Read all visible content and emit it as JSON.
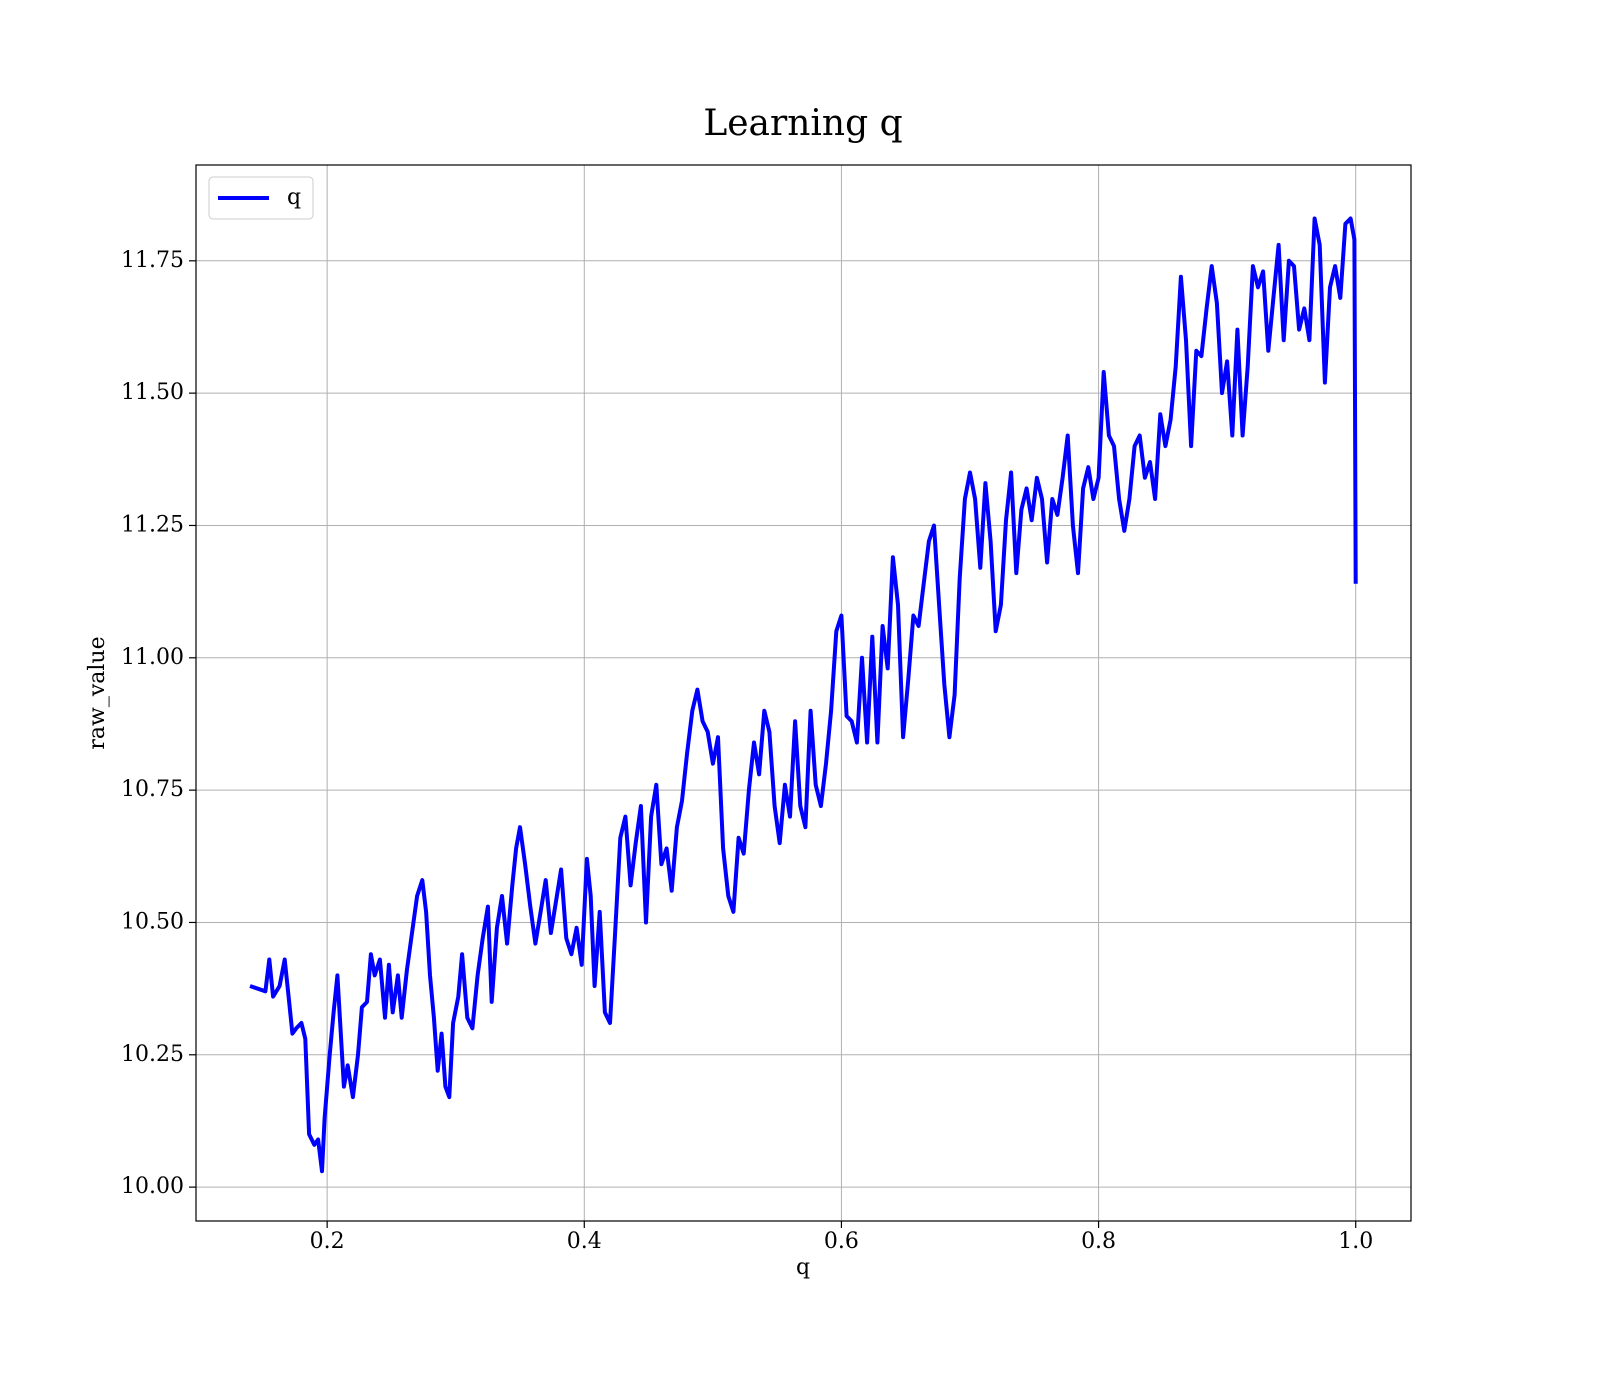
{
  "chart_data": {
    "type": "line",
    "title": "Learning q",
    "xlabel": "q",
    "ylabel": "raw_value",
    "x": [
      0.14,
      0.152,
      0.155,
      0.158,
      0.163,
      0.167,
      0.17,
      0.173,
      0.176,
      0.18,
      0.183,
      0.186,
      0.19,
      0.193,
      0.196,
      0.198,
      0.202,
      0.205,
      0.208,
      0.213,
      0.216,
      0.22,
      0.224,
      0.227,
      0.231,
      0.234,
      0.237,
      0.241,
      0.245,
      0.248,
      0.251,
      0.255,
      0.258,
      0.262,
      0.266,
      0.27,
      0.274,
      0.277,
      0.28,
      0.283,
      0.286,
      0.289,
      0.292,
      0.295,
      0.298,
      0.302,
      0.305,
      0.309,
      0.313,
      0.317,
      0.321,
      0.325,
      0.328,
      0.332,
      0.336,
      0.34,
      0.344,
      0.347,
      0.35,
      0.354,
      0.358,
      0.362,
      0.366,
      0.37,
      0.374,
      0.378,
      0.382,
      0.386,
      0.39,
      0.394,
      0.398,
      0.402,
      0.405,
      0.408,
      0.412,
      0.416,
      0.42,
      0.424,
      0.428,
      0.432,
      0.436,
      0.44,
      0.444,
      0.448,
      0.452,
      0.456,
      0.46,
      0.464,
      0.468,
      0.472,
      0.476,
      0.48,
      0.484,
      0.488,
      0.492,
      0.496,
      0.5,
      0.504,
      0.508,
      0.512,
      0.516,
      0.52,
      0.524,
      0.528,
      0.532,
      0.536,
      0.54,
      0.544,
      0.548,
      0.552,
      0.556,
      0.56,
      0.564,
      0.568,
      0.572,
      0.576,
      0.58,
      0.584,
      0.588,
      0.592,
      0.596,
      0.6,
      0.604,
      0.608,
      0.612,
      0.616,
      0.62,
      0.624,
      0.628,
      0.632,
      0.636,
      0.64,
      0.644,
      0.648,
      0.652,
      0.656,
      0.66,
      0.664,
      0.668,
      0.672,
      0.676,
      0.68,
      0.684,
      0.688,
      0.692,
      0.696,
      0.7,
      0.704,
      0.708,
      0.712,
      0.716,
      0.72,
      0.724,
      0.728,
      0.732,
      0.736,
      0.74,
      0.744,
      0.748,
      0.752,
      0.756,
      0.76,
      0.764,
      0.768,
      0.772,
      0.776,
      0.78,
      0.784,
      0.788,
      0.792,
      0.796,
      0.8,
      0.804,
      0.808,
      0.812,
      0.816,
      0.82,
      0.824,
      0.828,
      0.832,
      0.836,
      0.84,
      0.844,
      0.848,
      0.852,
      0.856,
      0.86,
      0.864,
      0.868,
      0.872,
      0.876,
      0.88,
      0.884,
      0.888,
      0.892,
      0.896,
      0.9,
      0.904,
      0.908,
      0.912,
      0.916,
      0.92,
      0.924,
      0.928,
      0.932,
      0.936,
      0.94,
      0.944,
      0.948,
      0.952,
      0.956,
      0.96,
      0.964,
      0.968,
      0.972,
      0.976,
      0.98,
      0.984,
      0.988,
      0.992,
      0.996,
      0.999,
      1.0
    ],
    "series": [
      {
        "name": "q",
        "color": "#0000ff",
        "values": [
          10.38,
          10.37,
          10.43,
          10.36,
          10.38,
          10.43,
          10.36,
          10.29,
          10.3,
          10.31,
          10.28,
          10.1,
          10.08,
          10.09,
          10.03,
          10.13,
          10.25,
          10.33,
          10.4,
          10.19,
          10.23,
          10.17,
          10.25,
          10.34,
          10.35,
          10.44,
          10.4,
          10.43,
          10.32,
          10.42,
          10.33,
          10.4,
          10.32,
          10.41,
          10.48,
          10.55,
          10.58,
          10.52,
          10.4,
          10.32,
          10.22,
          10.29,
          10.19,
          10.17,
          10.31,
          10.36,
          10.44,
          10.32,
          10.3,
          10.4,
          10.47,
          10.53,
          10.35,
          10.49,
          10.55,
          10.46,
          10.57,
          10.64,
          10.68,
          10.61,
          10.53,
          10.46,
          10.52,
          10.58,
          10.48,
          10.54,
          10.6,
          10.47,
          10.44,
          10.49,
          10.42,
          10.62,
          10.55,
          10.38,
          10.52,
          10.33,
          10.31,
          10.48,
          10.66,
          10.7,
          10.57,
          10.65,
          10.72,
          10.5,
          10.7,
          10.76,
          10.61,
          10.64,
          10.56,
          10.68,
          10.73,
          10.82,
          10.9,
          10.94,
          10.88,
          10.86,
          10.8,
          10.85,
          10.64,
          10.55,
          10.52,
          10.66,
          10.63,
          10.75,
          10.84,
          10.78,
          10.9,
          10.86,
          10.72,
          10.65,
          10.76,
          10.7,
          10.88,
          10.72,
          10.68,
          10.9,
          10.76,
          10.72,
          10.8,
          10.9,
          11.05,
          11.08,
          10.89,
          10.88,
          10.84,
          11.0,
          10.84,
          11.04,
          10.84,
          11.06,
          10.98,
          11.19,
          11.1,
          10.85,
          10.96,
          11.08,
          11.06,
          11.14,
          11.22,
          11.25,
          11.1,
          10.95,
          10.85,
          10.93,
          11.15,
          11.3,
          11.35,
          11.3,
          11.17,
          11.33,
          11.22,
          11.05,
          11.1,
          11.26,
          11.35,
          11.16,
          11.28,
          11.32,
          11.26,
          11.34,
          11.3,
          11.18,
          11.3,
          11.27,
          11.34,
          11.42,
          11.25,
          11.16,
          11.32,
          11.36,
          11.3,
          11.34,
          11.54,
          11.42,
          11.4,
          11.3,
          11.24,
          11.3,
          11.4,
          11.42,
          11.34,
          11.37,
          11.3,
          11.46,
          11.4,
          11.45,
          11.55,
          11.72,
          11.6,
          11.4,
          11.58,
          11.57,
          11.66,
          11.74,
          11.67,
          11.5,
          11.56,
          11.42,
          11.62,
          11.42,
          11.55,
          11.74,
          11.7,
          11.73,
          11.58,
          11.68,
          11.78,
          11.6,
          11.75,
          11.74,
          11.62,
          11.66,
          11.6,
          11.83,
          11.78,
          11.52,
          11.7,
          11.74,
          11.68,
          11.82,
          11.83,
          11.79,
          11.14
        ]
      }
    ],
    "xlim": [
      0.098,
      1.043
    ],
    "ylim": [
      9.936,
      11.931
    ],
    "xticks": [
      0.2,
      0.4,
      0.6,
      0.8,
      {
        "value": 1.0,
        "label": "1.0"
      }
    ],
    "yticks": [
      {
        "value": 10,
        "label": "10.00"
      },
      10.25,
      {
        "value": 10.5,
        "label": "10.50"
      },
      10.75,
      {
        "value": 11,
        "label": "11.00"
      },
      11.25,
      {
        "value": 11.5,
        "label": "11.50"
      },
      11.75
    ],
    "grid": true,
    "legend": "upper left"
  }
}
